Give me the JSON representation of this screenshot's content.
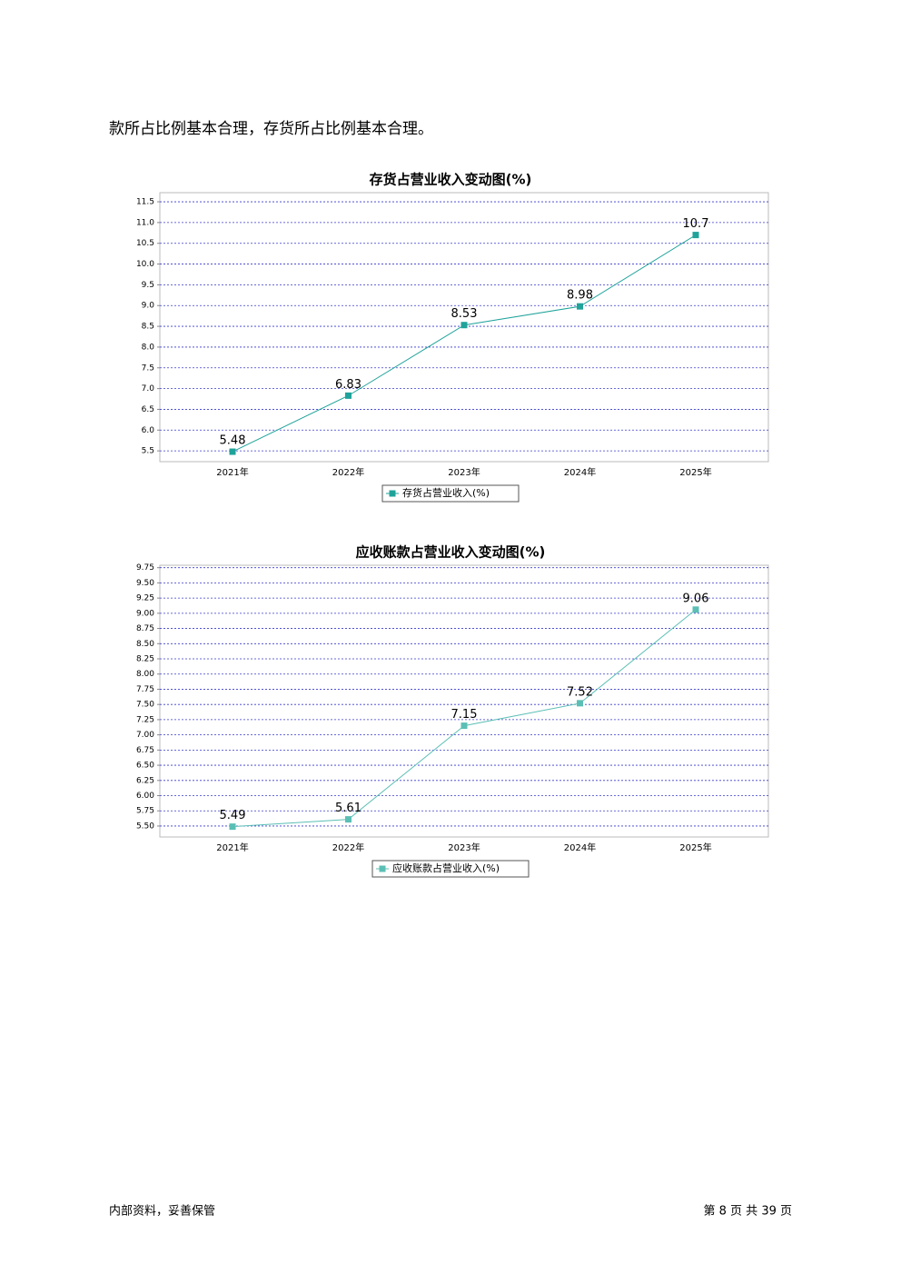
{
  "body_text": "款所占比例基本合理，存货所占比例基本合理。",
  "chart_data": [
    {
      "type": "line",
      "title": "存货占营业收入变动图(%)",
      "categories": [
        "2021年",
        "2022年",
        "2023年",
        "2024年",
        "2025年"
      ],
      "series": [
        {
          "name": "存货占营业收入(%)",
          "color": "#1fa39a",
          "values": [
            5.48,
            6.83,
            8.53,
            8.98,
            10.7
          ]
        }
      ],
      "ylim": [
        5.24,
        11.72
      ],
      "yticks": [
        5.5,
        {
          "value": 6,
          "label": "6.0"
        },
        6.5,
        {
          "value": 7,
          "label": "7.0"
        },
        7.5,
        {
          "value": 8,
          "label": "8.0"
        },
        8.5,
        {
          "value": 9,
          "label": "9.0"
        },
        9.5,
        {
          "value": 10,
          "label": "10.0"
        },
        10.5,
        {
          "value": 11,
          "label": "11.0"
        },
        11.5
      ],
      "grid": true
    },
    {
      "type": "line",
      "title": "应收账款占营业收入变动图(%)",
      "categories": [
        "2021年",
        "2022年",
        "2023年",
        "2024年",
        "2025年"
      ],
      "series": [
        {
          "name": "应收账款占营业收入(%)",
          "color": "#5bbfb5",
          "values": [
            5.49,
            5.61,
            7.15,
            7.52,
            9.06
          ]
        }
      ],
      "ylim": [
        5.32,
        9.79
      ],
      "yticks": [
        {
          "value": 5.5,
          "label": "5.50"
        },
        5.75,
        {
          "value": 6,
          "label": "6.00"
        },
        6.25,
        {
          "value": 6.5,
          "label": "6.50"
        },
        6.75,
        {
          "value": 7,
          "label": "7.00"
        },
        7.25,
        {
          "value": 7.5,
          "label": "7.50"
        },
        7.75,
        {
          "value": 8,
          "label": "8.00"
        },
        8.25,
        {
          "value": 8.5,
          "label": "8.50"
        },
        8.75,
        {
          "value": 9,
          "label": "9.00"
        },
        9.25,
        {
          "value": 9.5,
          "label": "9.50"
        },
        9.75
      ],
      "grid": true
    }
  ],
  "footer": {
    "left": "内部资料，妥善保管",
    "page_text": "第 8 页  共 39 页"
  }
}
